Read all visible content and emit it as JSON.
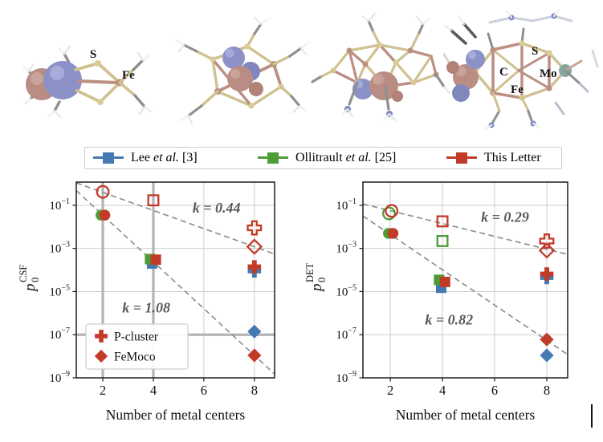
{
  "colors": {
    "lee": "#4678b2",
    "ollitrault": "#4e9c35",
    "this_letter": "#c23b28",
    "grid": "#cdcdcd",
    "grid_thick": "#b4b4b4",
    "trend": "#8a8a8a",
    "annotation": "#595959",
    "frame": "#1c1c1c"
  },
  "molecules": {
    "m1_s": "S",
    "m1_fe": "Fe",
    "m4_s": "S",
    "m4_c": "C",
    "m4_mo": "Mo",
    "m4_fe": "Fe"
  },
  "legend": {
    "items": [
      {
        "series": "lee",
        "pre": "Lee ",
        "it": "et al.",
        "post": " [3]"
      },
      {
        "series": "ollitrault",
        "pre": "Ollitrault ",
        "it": "et al.",
        "post": " [25]"
      },
      {
        "series": "this_letter",
        "pre": "This Letter",
        "it": "",
        "post": ""
      }
    ]
  },
  "chart_data": [
    {
      "type": "scatter",
      "id": "csf",
      "ylabel": {
        "letter": "p",
        "sub": "0",
        "sup": "CSF"
      },
      "xlabel": "Number of metal centers",
      "xlim": [
        0.95,
        8.8
      ],
      "x_ticks": [
        2,
        4,
        6,
        8
      ],
      "y_tick_exponents": [
        -1,
        -3,
        -5,
        -7,
        -9
      ],
      "ylim_log": [
        -9,
        0.075
      ],
      "grid": true,
      "thick_grid_x": [
        2,
        4
      ],
      "thick_grid_y_exp": [
        -7
      ],
      "trend_lines": [
        {
          "label": "k = 0.44",
          "label_x": 6.5,
          "label_y": 0.078,
          "x1": 0.95,
          "y1": 1.1,
          "x2": 8.8,
          "y2": 0.00055
        },
        {
          "label": "k = 1.08",
          "label_x": 3.72,
          "label_y": 1.8e-06,
          "x1": 0.95,
          "y1": 0.48,
          "x2": 8.8,
          "y2": 1.5e-09
        }
      ],
      "points": [
        {
          "series": "ollitrault",
          "marker": "circle",
          "open": false,
          "x": 1.93,
          "y": 0.035
        },
        {
          "series": "this_letter",
          "marker": "circle",
          "open": false,
          "x": 2.08,
          "y": 0.035
        },
        {
          "series": "this_letter",
          "marker": "circle",
          "open": true,
          "x": 2.0,
          "y": 0.42
        },
        {
          "series": "lee",
          "marker": "square",
          "open": false,
          "x": 3.95,
          "y": 0.0002
        },
        {
          "series": "ollitrault",
          "marker": "square",
          "open": false,
          "x": 3.87,
          "y": 0.00032
        },
        {
          "series": "this_letter",
          "marker": "square",
          "open": false,
          "x": 4.1,
          "y": 0.0003
        },
        {
          "series": "this_letter",
          "marker": "square",
          "open": true,
          "x": 4.0,
          "y": 0.17
        },
        {
          "series": "lee",
          "marker": "plus",
          "open": false,
          "x": 8.0,
          "y": 9e-05
        },
        {
          "series": "this_letter",
          "marker": "plus",
          "open": false,
          "x": 8.0,
          "y": 0.00014
        },
        {
          "series": "this_letter",
          "marker": "plus",
          "open": true,
          "x": 8.0,
          "y": 0.009
        },
        {
          "series": "this_letter",
          "marker": "diamond",
          "open": true,
          "x": 8.0,
          "y": 0.0012
        },
        {
          "series": "lee",
          "marker": "diamond",
          "open": false,
          "x": 8.0,
          "y": 1.4e-07
        },
        {
          "series": "this_letter",
          "marker": "diamond",
          "open": false,
          "x": 8.0,
          "y": 1.1e-08
        }
      ],
      "inner_legend": {
        "items": [
          {
            "label": "P-cluster",
            "marker": "plus",
            "series": "this_letter"
          },
          {
            "label": "FeMoco",
            "marker": "diamond",
            "series": "this_letter"
          }
        ]
      }
    },
    {
      "type": "scatter",
      "id": "det",
      "ylabel": {
        "letter": "p",
        "sub": "0",
        "sup": "DET"
      },
      "xlabel": "Number of metal centers",
      "xlim": [
        0.95,
        8.8
      ],
      "x_ticks": [
        2,
        4,
        6,
        8
      ],
      "y_tick_exponents": [
        -1,
        -3,
        -5,
        -7,
        -9
      ],
      "ylim_log": [
        -9,
        0.075
      ],
      "grid": true,
      "thick_grid_x": [],
      "thick_grid_y_exp": [],
      "trend_lines": [
        {
          "label": "k = 0.29",
          "label_x": 6.4,
          "label_y": 0.029,
          "x1": 0.95,
          "y1": 0.115,
          "x2": 8.8,
          "y2": 0.00053
        },
        {
          "label": "k = 0.82",
          "label_x": 4.25,
          "label_y": 5e-07,
          "x1": 0.95,
          "y1": 0.032,
          "x2": 8.8,
          "y2": 1.2e-08
        }
      ],
      "points": [
        {
          "series": "ollitrault",
          "marker": "circle",
          "open": true,
          "x": 1.95,
          "y": 0.042
        },
        {
          "series": "this_letter",
          "marker": "circle",
          "open": true,
          "x": 2.05,
          "y": 0.055
        },
        {
          "series": "ollitrault",
          "marker": "circle",
          "open": false,
          "x": 1.93,
          "y": 0.005
        },
        {
          "series": "this_letter",
          "marker": "circle",
          "open": false,
          "x": 2.1,
          "y": 0.005
        },
        {
          "series": "this_letter",
          "marker": "square",
          "open": true,
          "x": 4.0,
          "y": 0.018
        },
        {
          "series": "ollitrault",
          "marker": "square",
          "open": true,
          "x": 4.0,
          "y": 0.0022
        },
        {
          "series": "lee",
          "marker": "square",
          "open": false,
          "x": 3.95,
          "y": 1.5e-05
        },
        {
          "series": "ollitrault",
          "marker": "square",
          "open": false,
          "x": 3.87,
          "y": 3.5e-05
        },
        {
          "series": "this_letter",
          "marker": "square",
          "open": false,
          "x": 4.1,
          "y": 2.8e-05
        },
        {
          "series": "this_letter",
          "marker": "diamond",
          "open": true,
          "x": 8.0,
          "y": 0.0008
        },
        {
          "series": "this_letter",
          "marker": "plus",
          "open": true,
          "x": 8.0,
          "y": 0.0022
        },
        {
          "series": "lee",
          "marker": "plus",
          "open": false,
          "x": 8.0,
          "y": 4.5e-05
        },
        {
          "series": "this_letter",
          "marker": "plus",
          "open": false,
          "x": 8.0,
          "y": 6.5e-05
        },
        {
          "series": "this_letter",
          "marker": "diamond",
          "open": false,
          "x": 8.0,
          "y": 6e-08
        },
        {
          "series": "lee",
          "marker": "diamond",
          "open": false,
          "x": 8.0,
          "y": 1.1e-08
        }
      ],
      "inner_legend": null
    }
  ]
}
